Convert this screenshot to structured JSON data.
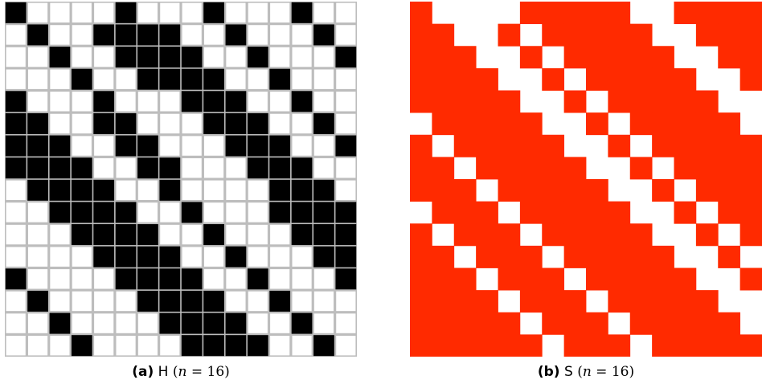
{
  "panels": [
    {
      "id": "a",
      "caption": {
        "label": "(a)",
        "name": "H",
        "var": "n",
        "eq": " = ",
        "value": "16"
      },
      "style": "bw",
      "fill_color": "#000000",
      "empty_color": "#ffffff",
      "grid_color": "#bdbdbd",
      "matrix": [
        "1000010001000100",
        "0100111100100010",
        "0010011110010001",
        "0001001111001000",
        "1000100011100100",
        "1100110001110010",
        "1110011000111001",
        "1111001100011100",
        "0111100100001110",
        "0011110010001111",
        "0001111001000111",
        "0000111100100011",
        "1000011110010001",
        "0100001111001000",
        "0010000111100100",
        "0001000011110010"
      ]
    },
    {
      "id": "b",
      "caption": {
        "label": "(b)",
        "name": "S",
        "var": "n",
        "eq": " = ",
        "value": "16"
      },
      "style": "solid",
      "fill_color": "#ff2a00",
      "empty_color": "#ffffff",
      "matrix": [
        "1000011111001111",
        "1100101111100111",
        "1110010111110011",
        "1111001011111001",
        "1111100101111100",
        "0111110010111110",
        "1011111001011111",
        "1101111100101111",
        "1110111110010111",
        "0111011111001011",
        "1011101111100101",
        "1101110111110010",
        "1110111011111001",
        "1111011101111100",
        "1111101110111110",
        "1111110111011111"
      ]
    }
  ]
}
